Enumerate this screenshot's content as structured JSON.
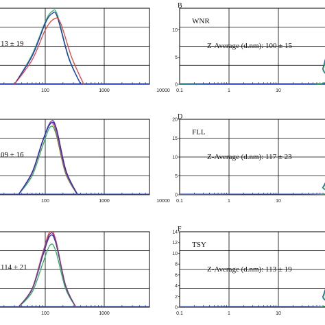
{
  "colors": {
    "frame": "#000000",
    "grid": "#000000",
    "baseline": "#1f3fbf",
    "series": [
      "#e8403a",
      "#2bb24c",
      "#1c2fd6",
      "#7a3a8a"
    ]
  },
  "chart_data": [
    {
      "type": "line",
      "panel": "left-top",
      "panel_letter": "",
      "sample_label": "",
      "annotation": "13 ± 19",
      "xscale": "log",
      "xlim": [
        10,
        10000
      ],
      "xticks": [
        "100",
        "1000",
        "10000"
      ],
      "ylim": [
        0,
        14
      ],
      "yticks": [],
      "grid": true,
      "series": [
        {
          "color": "#2bb24c",
          "x": [
            30,
            60,
            100,
            130,
            160,
            250,
            400
          ],
          "y": [
            0,
            5.5,
            11.5,
            13.4,
            12.8,
            5,
            0
          ]
        },
        {
          "color": "#1c2fd6",
          "x": [
            30,
            60,
            100,
            130,
            160,
            250,
            400
          ],
          "y": [
            0,
            5.2,
            11.2,
            13.0,
            12.4,
            4.8,
            0
          ]
        },
        {
          "color": "#e8403a",
          "x": [
            30,
            60,
            100,
            140,
            180,
            280,
            450
          ],
          "y": [
            0,
            4.5,
            10.0,
            12.0,
            11.4,
            5,
            0
          ]
        }
      ]
    },
    {
      "type": "line",
      "panel": "right-top",
      "panel_letter": "B",
      "sample_label": "WNR",
      "annotation": "Z-Average (d.nm): 100 ± 15",
      "xscale": "log",
      "xlim": [
        0.1,
        10000
      ],
      "xticks": [
        "0.1",
        "1",
        "10"
      ],
      "ylim": [
        0,
        14
      ],
      "yticks": [
        "0",
        "5",
        "10"
      ],
      "grid": true,
      "series": [
        {
          "color": "#1c2fd6",
          "x": [
            0.1,
            60,
            80,
            100
          ],
          "y": [
            0,
            0,
            3,
            6.5
          ]
        },
        {
          "color": "#2bb24c",
          "x": [
            0.1,
            60,
            82,
            100
          ],
          "y": [
            0,
            0,
            3,
            6.2
          ]
        }
      ]
    },
    {
      "type": "line",
      "panel": "left-middle",
      "panel_letter": "",
      "sample_label": "",
      "annotation": "09 ± 16",
      "xscale": "log",
      "xlim": [
        10,
        10000
      ],
      "xticks": [
        "100",
        "1000",
        "10000"
      ],
      "ylim": [
        0,
        14
      ],
      "yticks": [],
      "grid": true,
      "series": [
        {
          "color": "#2bb24c",
          "x": [
            35,
            60,
            90,
            120,
            150,
            220,
            350
          ],
          "y": [
            0,
            3.5,
            9,
            12.5,
            11.5,
            4,
            0
          ]
        },
        {
          "color": "#e8403a",
          "x": [
            35,
            60,
            90,
            120,
            150,
            220,
            350
          ],
          "y": [
            0,
            4,
            9.8,
            13.2,
            12,
            4.3,
            0
          ]
        },
        {
          "color": "#7a3a8a",
          "x": [
            35,
            60,
            90,
            125,
            155,
            225,
            355
          ],
          "y": [
            0,
            4.2,
            10,
            13.6,
            12.3,
            4.5,
            0
          ]
        },
        {
          "color": "#1c2fd6",
          "x": [
            35,
            60,
            90,
            125,
            155,
            225,
            355
          ],
          "y": [
            0,
            4.1,
            9.9,
            13.3,
            12.1,
            4.4,
            0
          ]
        }
      ]
    },
    {
      "type": "line",
      "panel": "right-middle",
      "panel_letter": "D",
      "sample_label": "FLL",
      "annotation": "Z-Average (d.nm): 117 ± 23",
      "xscale": "log",
      "xlim": [
        0.1,
        10000
      ],
      "xticks": [
        "0.1",
        "1",
        "10"
      ],
      "ylim": [
        0,
        20
      ],
      "yticks": [
        "0",
        "5",
        "10",
        "15",
        "20"
      ],
      "grid": true,
      "series": [
        {
          "color": "#1c2fd6",
          "x": [
            0.1,
            60,
            80,
            100
          ],
          "y": [
            0,
            0,
            2,
            4.5
          ]
        },
        {
          "color": "#2bb24c",
          "x": [
            0.1,
            60,
            82,
            100
          ],
          "y": [
            0,
            0,
            2,
            4.2
          ]
        }
      ]
    },
    {
      "type": "line",
      "panel": "left-bottom",
      "panel_letter": "",
      "sample_label": "",
      "annotation": "114 ± 21",
      "xscale": "log",
      "xlim": [
        10,
        10000
      ],
      "xticks": [
        "100",
        "1000"
      ],
      "ylim": [
        0,
        14
      ],
      "yticks": [],
      "grid": true,
      "series": [
        {
          "color": "#2bb24c",
          "x": [
            35,
            60,
            90,
            120,
            150,
            220,
            330
          ],
          "y": [
            0,
            2.8,
            8,
            11.5,
            10.5,
            3.5,
            0
          ]
        },
        {
          "color": "#e8403a",
          "x": [
            35,
            60,
            90,
            120,
            150,
            220,
            330
          ],
          "y": [
            0,
            3.5,
            10,
            14,
            12.6,
            4.2,
            0
          ]
        },
        {
          "color": "#1c2fd6",
          "x": [
            35,
            60,
            90,
            120,
            150,
            220,
            330
          ],
          "y": [
            0,
            3.3,
            9.4,
            13.2,
            12,
            4,
            0
          ]
        },
        {
          "color": "#7a3a8a",
          "x": [
            35,
            60,
            90,
            120,
            150,
            220,
            330
          ],
          "y": [
            0,
            3.4,
            9.7,
            13.6,
            12.3,
            4.1,
            0
          ]
        }
      ]
    },
    {
      "type": "line",
      "panel": "right-bottom",
      "panel_letter": "F",
      "sample_label": "TSY",
      "annotation": "Z-Average (d.nm): 113 ± 19",
      "xscale": "log",
      "xlim": [
        0.1,
        10000
      ],
      "xticks": [
        "0.1",
        "1",
        "10"
      ],
      "ylim": [
        0,
        14
      ],
      "yticks": [
        "0",
        "2",
        "4",
        "6",
        "8",
        "10",
        "12",
        "14"
      ],
      "grid": true,
      "series": [
        {
          "color": "#1c2fd6",
          "x": [
            0.1,
            60,
            80,
            100
          ],
          "y": [
            0,
            0,
            2,
            5
          ]
        },
        {
          "color": "#2bb24c",
          "x": [
            0.1,
            60,
            82,
            100
          ],
          "y": [
            0,
            0,
            2,
            4.6
          ]
        }
      ]
    }
  ]
}
